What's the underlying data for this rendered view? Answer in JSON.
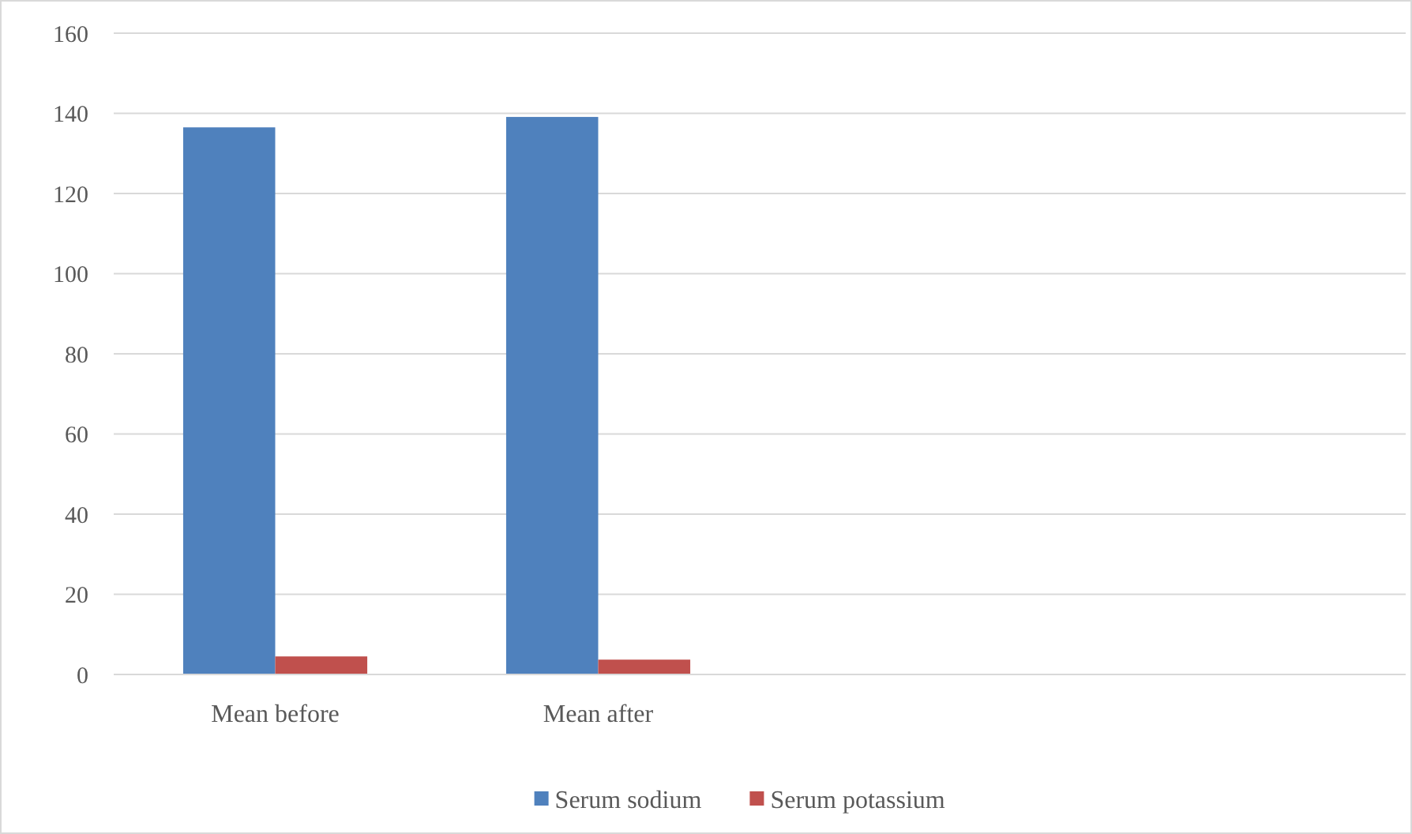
{
  "chart_data": {
    "type": "bar",
    "categories": [
      "Mean before",
      "Mean after",
      null,
      null
    ],
    "series": [
      {
        "name": "Serum sodium",
        "color": "#4f81bd",
        "values": [
          136.5,
          139.1,
          null,
          null
        ]
      },
      {
        "name": "Serum potassium",
        "color": "#c0504d",
        "values": [
          4.5,
          3.7,
          null,
          null
        ]
      }
    ],
    "ylim": [
      0,
      160
    ],
    "yticks": [
      0,
      20,
      40,
      60,
      80,
      100,
      120,
      140,
      160
    ],
    "grid": "y",
    "legend": "bottom"
  }
}
